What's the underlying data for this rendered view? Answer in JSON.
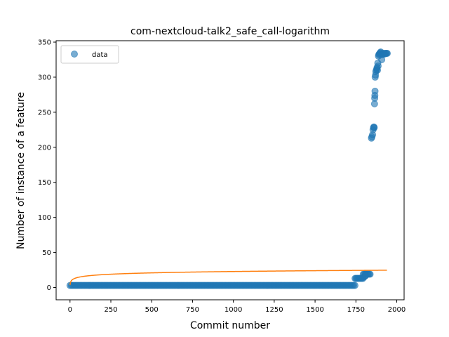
{
  "chart_data": {
    "type": "scatter",
    "title": "com-nextcloud-talk2_safe_call-logarithm",
    "xlabel": "Commit number",
    "ylabel": "Number of instance of a feature",
    "xlim": [
      -85,
      2045
    ],
    "ylim": [
      -17.5,
      352
    ],
    "x_ticks": [
      0,
      250,
      500,
      750,
      1000,
      1250,
      1500,
      1750,
      2000
    ],
    "y_ticks": [
      0,
      50,
      100,
      150,
      200,
      250,
      300,
      350
    ],
    "legend": {
      "placement": "top-left",
      "entries": [
        "data"
      ]
    },
    "grid": false,
    "series": [
      {
        "name": "data",
        "kind": "scatter",
        "color": "#1f77b4",
        "ranges": [
          {
            "x_start": 0,
            "x_end": 1745,
            "step": 8,
            "y": 3
          },
          {
            "x_start": 1745,
            "x_end": 1795,
            "step": 6,
            "y": 13
          },
          {
            "x_start": 1795,
            "x_end": 1840,
            "step": 6,
            "y": 19
          }
        ],
        "points": [
          [
            1800,
            15
          ],
          [
            1805,
            16
          ],
          [
            1810,
            17
          ],
          [
            1845,
            213
          ],
          [
            1848,
            215
          ],
          [
            1852,
            218
          ],
          [
            1855,
            225
          ],
          [
            1858,
            228
          ],
          [
            1860,
            229
          ],
          [
            1862,
            228
          ],
          [
            1864,
            262
          ],
          [
            1865,
            270
          ],
          [
            1866,
            274
          ],
          [
            1867,
            280
          ],
          [
            1868,
            300
          ],
          [
            1870,
            303
          ],
          [
            1872,
            308
          ],
          [
            1875,
            310
          ],
          [
            1878,
            312
          ],
          [
            1880,
            314
          ],
          [
            1882,
            310
          ],
          [
            1884,
            320
          ],
          [
            1886,
            316
          ],
          [
            1888,
            330
          ],
          [
            1890,
            332
          ],
          [
            1893,
            333
          ],
          [
            1896,
            334
          ],
          [
            1899,
            335
          ],
          [
            1902,
            336
          ],
          [
            1905,
            333
          ],
          [
            1908,
            325
          ],
          [
            1911,
            332
          ],
          [
            1914,
            334
          ],
          [
            1918,
            333
          ],
          [
            1922,
            334
          ],
          [
            1926,
            333
          ],
          [
            1930,
            334
          ],
          [
            1934,
            334
          ],
          [
            1938,
            334
          ],
          [
            1942,
            334
          ]
        ]
      },
      {
        "kind": "line",
        "color": "#ff7f0e",
        "model": "a*ln(x+1)+b",
        "a": 2.8,
        "b": 3.5,
        "x_range": [
          0,
          1940
        ]
      }
    ]
  }
}
